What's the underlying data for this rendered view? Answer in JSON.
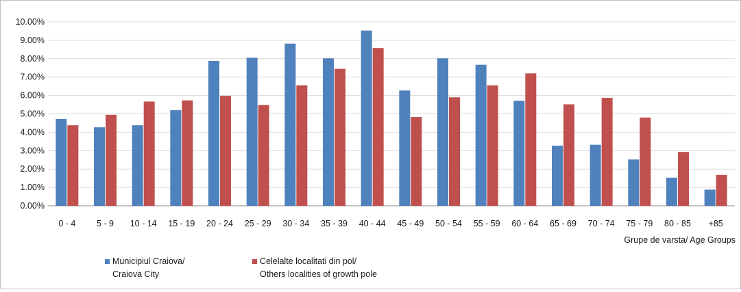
{
  "chart_data": {
    "type": "bar",
    "title": "",
    "xlabel": "Grupe de varsta/ Age Groups",
    "ylabel": "",
    "ylim": [
      0,
      10
    ],
    "y_tick_labels": [
      "0.00%",
      "1.00%",
      "2.00%",
      "3.00%",
      "4.00%",
      "5.00%",
      "6.00%",
      "7.00%",
      "8.00%",
      "9.00%",
      "10.00%"
    ],
    "grid": true,
    "legend_position": "bottom-left",
    "categories": [
      "0 - 4",
      "5 - 9",
      "10 - 14",
      "15 - 19",
      "20 - 24",
      "25 - 29",
      "30 - 34",
      "35 - 39",
      "40 - 44",
      "45 - 49",
      "50 - 54",
      "55 - 59",
      "60 - 64",
      "65 - 69",
      "70 - 74",
      "75 - 79",
      "80 - 85",
      "+85"
    ],
    "series": [
      {
        "name": "Municipiul Craiova/ Craiova City",
        "legend_lines": [
          "Municipiul Craiova/",
          "Craiova City"
        ],
        "color": "#4f81bd",
        "values": [
          4.72,
          4.27,
          4.38,
          5.2,
          7.88,
          8.05,
          8.82,
          8.02,
          9.53,
          6.27,
          8.02,
          7.67,
          5.71,
          3.27,
          3.32,
          2.52,
          1.53,
          0.88
        ]
      },
      {
        "name": "Celelalte localitati din pol/ Others localities of growth pole",
        "legend_lines": [
          "Celelalte localitati din pol/",
          "Others localities of growth pole"
        ],
        "color": "#c0504d",
        "values": [
          4.38,
          4.95,
          5.67,
          5.73,
          5.98,
          5.48,
          6.55,
          7.45,
          8.58,
          4.83,
          5.9,
          6.55,
          7.2,
          5.52,
          5.87,
          4.8,
          2.93,
          1.68
        ]
      }
    ]
  }
}
